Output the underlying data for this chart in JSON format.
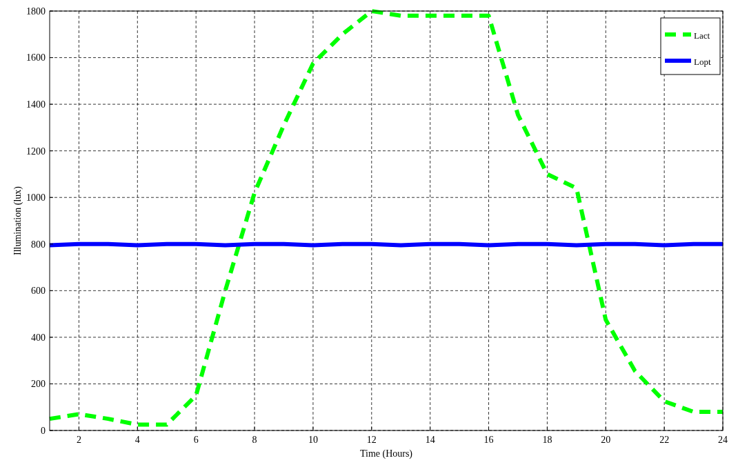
{
  "chart_data": {
    "type": "line",
    "xlabel": "Time (Hours)",
    "ylabel": "Illumination (lux)",
    "x": [
      1,
      2,
      3,
      4,
      5,
      6,
      7,
      8,
      9,
      10,
      11,
      12,
      13,
      14,
      15,
      16,
      17,
      18,
      19,
      20,
      21,
      22,
      23,
      24
    ],
    "series": [
      {
        "name": "Lact",
        "color": "#00ff00",
        "line_style": "dashed",
        "values": [
          50,
          70,
          50,
          25,
          25,
          150,
          600,
          1020,
          1310,
          1575,
          1700,
          1800,
          1780,
          1780,
          1780,
          1780,
          1355,
          1100,
          1040,
          475,
          255,
          125,
          80,
          80
        ]
      },
      {
        "name": "Lopt",
        "color": "#0000ff",
        "line_style": "solid",
        "values": [
          795,
          800,
          800,
          795,
          800,
          800,
          795,
          800,
          800,
          795,
          800,
          800,
          795,
          800,
          800,
          795,
          800,
          800,
          795,
          800,
          800,
          795,
          800,
          800
        ]
      }
    ],
    "xlim": [
      1,
      24
    ],
    "xticks": [
      2,
      4,
      6,
      8,
      10,
      12,
      14,
      16,
      18,
      20,
      22,
      24
    ],
    "ylim": [
      0,
      1800
    ],
    "yticks": [
      0,
      200,
      400,
      600,
      800,
      1000,
      1200,
      1400,
      1600,
      1800
    ],
    "grid": true,
    "legend": "top right"
  }
}
